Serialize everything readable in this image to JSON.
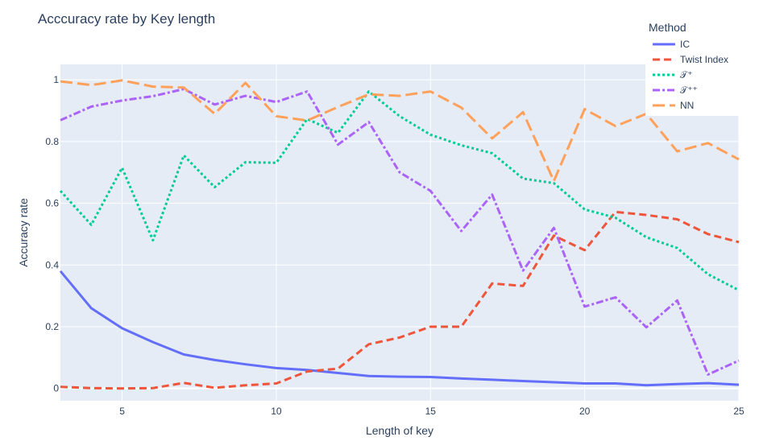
{
  "chart_data": {
    "type": "line",
    "title": "Acccuracy rate by Key length",
    "xlabel": "Length of key",
    "ylabel": "Accuracy rate",
    "xlim": [
      3,
      25
    ],
    "ylim": [
      -0.04,
      1.05
    ],
    "xticks": [
      5,
      10,
      15,
      20,
      25
    ],
    "yticks": [
      0,
      0.2,
      0.4,
      0.6,
      0.8,
      1
    ],
    "grid": true,
    "legend": {
      "title": "Method",
      "placement": "top-right"
    },
    "x": [
      3,
      4,
      5,
      6,
      7,
      8,
      9,
      10,
      11,
      12,
      13,
      14,
      15,
      16,
      17,
      18,
      19,
      20,
      21,
      22,
      23,
      24,
      25
    ],
    "series": [
      {
        "name": "IC",
        "color": "#636efa",
        "dash": "solid",
        "values": [
          0.38,
          0.26,
          0.195,
          0.15,
          0.11,
          0.092,
          0.078,
          0.066,
          0.06,
          0.05,
          0.04,
          0.038,
          0.037,
          0.032,
          0.028,
          0.024,
          0.02,
          0.016,
          0.016,
          0.01,
          0.014,
          0.017,
          0.012
        ]
      },
      {
        "name": "Twist Index",
        "color": "#ef553b",
        "dash": "dash",
        "values": [
          0.005,
          0.001,
          0.0,
          0.001,
          0.018,
          0.002,
          0.01,
          0.016,
          0.055,
          0.064,
          0.143,
          0.165,
          0.2,
          0.2,
          0.34,
          0.332,
          0.495,
          0.448,
          0.572,
          0.562,
          0.548,
          0.5,
          0.474
        ]
      },
      {
        "name": "𝒯⁺",
        "color": "#00cc96",
        "dash": "dot",
        "values": [
          0.64,
          0.53,
          0.715,
          0.48,
          0.755,
          0.652,
          0.733,
          0.731,
          0.873,
          0.828,
          0.962,
          0.882,
          0.822,
          0.788,
          0.762,
          0.68,
          0.665,
          0.58,
          0.553,
          0.49,
          0.455,
          0.37,
          0.318
        ]
      },
      {
        "name": "𝒯⁺⁺",
        "color": "#ab63fa",
        "dash": "dashdot",
        "values": [
          0.869,
          0.913,
          0.933,
          0.947,
          0.97,
          0.92,
          0.948,
          0.928,
          0.962,
          0.79,
          0.863,
          0.7,
          0.64,
          0.51,
          0.628,
          0.382,
          0.52,
          0.265,
          0.295,
          0.198,
          0.285,
          0.045,
          0.09
        ]
      },
      {
        "name": "NN",
        "color": "#ffa15a",
        "dash": "longdash",
        "values": [
          0.995,
          0.983,
          0.998,
          0.978,
          0.975,
          0.89,
          0.99,
          0.882,
          0.868,
          0.912,
          0.953,
          0.948,
          0.962,
          0.91,
          0.81,
          0.895,
          0.672,
          0.905,
          0.85,
          0.89,
          0.768,
          0.795,
          0.742
        ]
      }
    ]
  }
}
